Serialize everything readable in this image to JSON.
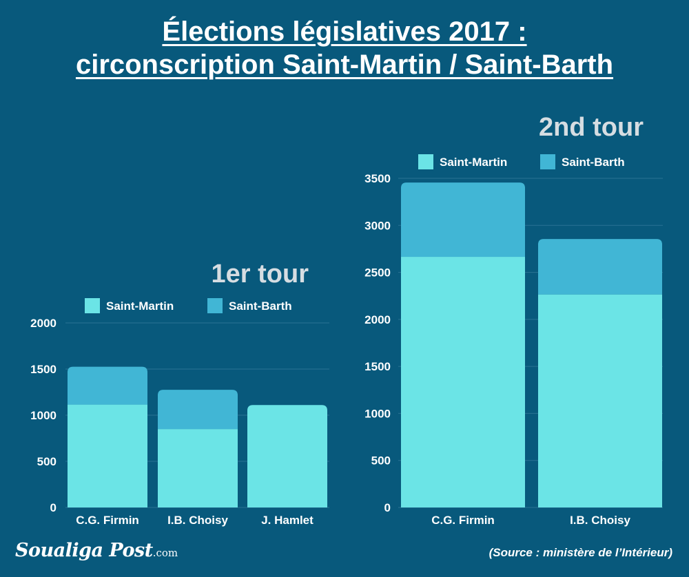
{
  "title": {
    "line1": "Élections législatives 2017 :",
    "line2": "circonscription Saint-Martin / Saint-Barth"
  },
  "colors": {
    "background": "#08597c",
    "saint_martin": "#6be4e6",
    "saint_barth": "#41b6d5",
    "subtitle": "#d6dde2",
    "text": "#ffffff"
  },
  "chart_data": [
    {
      "type": "bar",
      "stacked": true,
      "title": "1er tour",
      "categories": [
        "C.G. Firmin",
        "I.B. Choisy",
        "J. Hamlet"
      ],
      "series": [
        {
          "name": "Saint-Martin",
          "values": [
            1115,
            850,
            1110
          ]
        },
        {
          "name": "Saint-Barth",
          "values": [
            410,
            425,
            0
          ]
        }
      ],
      "ylim": [
        0,
        2000
      ],
      "yticks": [
        0,
        500,
        1000,
        1500,
        2000
      ],
      "grid": true,
      "legend": "top"
    },
    {
      "type": "bar",
      "stacked": true,
      "title": "2nd tour",
      "categories": [
        "C.G. Firmin",
        "I.B. Choisy"
      ],
      "series": [
        {
          "name": "Saint-Martin",
          "values": [
            2665,
            2265
          ]
        },
        {
          "name": "Saint-Barth",
          "values": [
            790,
            590
          ]
        }
      ],
      "ylim": [
        0,
        3500
      ],
      "yticks": [
        0,
        500,
        1000,
        1500,
        2000,
        2500,
        3000,
        3500
      ],
      "grid": true,
      "legend": "top"
    }
  ],
  "footer": {
    "logo": "Soualiga Post",
    "logo_suffix": ".com",
    "source": "(Source : ministère de l’Intérieur)"
  }
}
